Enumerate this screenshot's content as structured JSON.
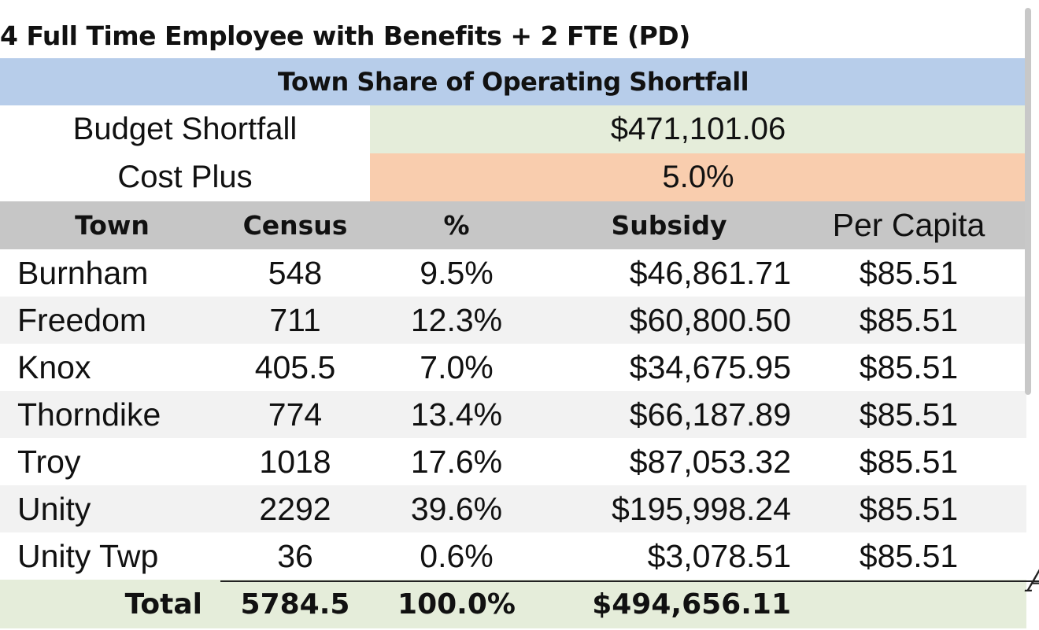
{
  "heading": "4 Full Time Employee with Benefits + 2 FTE (PD)",
  "banner": "Town Share of Operating Shortfall",
  "summary": [
    {
      "label": "Budget Shortfall",
      "value": "$471,101.06",
      "color": "#e5edda"
    },
    {
      "label": "Cost Plus",
      "value": "5.0%",
      "color": "#f9cdae"
    }
  ],
  "columns": [
    "Town",
    "Census",
    "%",
    "Subsidy",
    "Per Capita"
  ],
  "rows": [
    {
      "town": "Burnham",
      "census": "548",
      "pct": "9.5%",
      "subsidy": "$46,861.71",
      "per_capita": "$85.51"
    },
    {
      "town": "Freedom",
      "census": "711",
      "pct": "12.3%",
      "subsidy": "$60,800.50",
      "per_capita": "$85.51"
    },
    {
      "town": "Knox",
      "census": "405.5",
      "pct": "7.0%",
      "subsidy": "$34,675.95",
      "per_capita": "$85.51"
    },
    {
      "town": "Thorndike",
      "census": "774",
      "pct": "13.4%",
      "subsidy": "$66,187.89",
      "per_capita": "$85.51"
    },
    {
      "town": "Troy",
      "census": "1018",
      "pct": "17.6%",
      "subsidy": "$87,053.32",
      "per_capita": "$85.51"
    },
    {
      "town": "Unity",
      "census": "2292",
      "pct": "39.6%",
      "subsidy": "$195,998.24",
      "per_capita": "$85.51"
    },
    {
      "town": "Unity Twp",
      "census": "36",
      "pct": "0.6%",
      "subsidy": "$3,078.51",
      "per_capita": "$85.51"
    }
  ],
  "total": {
    "label": "Total",
    "census": "5784.5",
    "pct": "100.0%",
    "subsidy": "$494,656.11",
    "per_capita": ""
  },
  "edge_glyph": "A",
  "colors": {
    "banner": "#b7cdea",
    "header": "#c6c6c6",
    "total": "#e5edda",
    "alt_row": "#f2f2f2"
  }
}
